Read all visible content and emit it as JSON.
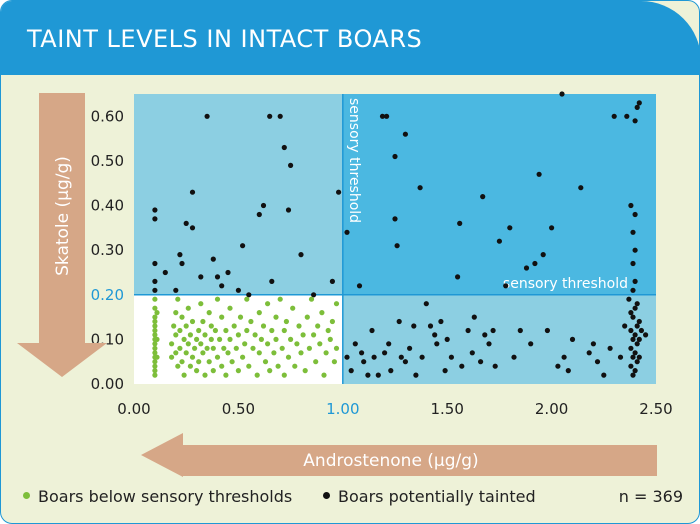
{
  "header": {
    "title": "TAINT LEVELS IN INTACT BOARS"
  },
  "colors": {
    "header_bg": "#1f98d5",
    "panel_bg": "#eef2d8",
    "region_high_both": "#4bb8e1",
    "region_single": "#8ccfe2",
    "region_below": "#ffffff",
    "point_green": "#7dbe3a",
    "point_black": "#111111",
    "arrow_tan": "#d6a787",
    "threshold_line": "#1f98d5"
  },
  "legend": {
    "below_label": "Boars below sensory thresholds",
    "tainted_label": "Boars potentially tainted",
    "n_label": "n = 369"
  },
  "chart_data": {
    "type": "scatter",
    "title": "TAINT LEVELS IN INTACT BOARS",
    "xlabel": "Androstenone (µg/g)",
    "ylabel": "Skatole (µg/g)",
    "xlim": [
      0,
      2.5
    ],
    "ylim": [
      0,
      0.65
    ],
    "xticks": [
      "0.00",
      "0.50",
      "1.00",
      "1.50",
      "2.00",
      "2.50"
    ],
    "yticks": [
      "0.00",
      "0.10",
      "0.20",
      "0.30",
      "0.40",
      "0.50",
      "0.60"
    ],
    "x_threshold": 1.0,
    "y_threshold": 0.2,
    "x_threshold_label": "sensory threshold",
    "y_threshold_label": "sensory threshold",
    "n": 369,
    "series": [
      {
        "name": "Boars potentially tainted",
        "points": [
          [
            0.1,
            0.39
          ],
          [
            0.1,
            0.37
          ],
          [
            0.1,
            0.27
          ],
          [
            0.1,
            0.23
          ],
          [
            0.1,
            0.21
          ],
          [
            0.15,
            0.25
          ],
          [
            0.2,
            0.21
          ],
          [
            0.22,
            0.29
          ],
          [
            0.23,
            0.27
          ],
          [
            0.25,
            0.36
          ],
          [
            0.28,
            0.35
          ],
          [
            0.28,
            0.43
          ],
          [
            0.32,
            0.24
          ],
          [
            0.35,
            0.6
          ],
          [
            0.38,
            0.28
          ],
          [
            0.4,
            0.24
          ],
          [
            0.42,
            0.22
          ],
          [
            0.45,
            0.25
          ],
          [
            0.5,
            0.21
          ],
          [
            0.52,
            0.31
          ],
          [
            0.55,
            0.2
          ],
          [
            0.6,
            0.38
          ],
          [
            0.62,
            0.4
          ],
          [
            0.65,
            0.6
          ],
          [
            0.66,
            0.23
          ],
          [
            0.7,
            0.6
          ],
          [
            0.72,
            0.53
          ],
          [
            0.75,
            0.49
          ],
          [
            0.74,
            0.39
          ],
          [
            0.8,
            0.29
          ],
          [
            0.86,
            0.2
          ],
          [
            0.95,
            0.23
          ],
          [
            0.98,
            0.43
          ],
          [
            1.02,
            0.34
          ],
          [
            1.02,
            0.06
          ],
          [
            1.04,
            0.03
          ],
          [
            1.06,
            0.09
          ],
          [
            1.08,
            0.22
          ],
          [
            1.09,
            0.07
          ],
          [
            1.1,
            0.05
          ],
          [
            1.12,
            0.02
          ],
          [
            1.14,
            0.12
          ],
          [
            1.15,
            0.06
          ],
          [
            1.17,
            0.02
          ],
          [
            1.19,
            0.6
          ],
          [
            1.2,
            0.07
          ],
          [
            1.21,
            0.6
          ],
          [
            1.22,
            0.09
          ],
          [
            1.23,
            0.03
          ],
          [
            1.25,
            0.51
          ],
          [
            1.25,
            0.37
          ],
          [
            1.26,
            0.31
          ],
          [
            1.27,
            0.14
          ],
          [
            1.28,
            0.06
          ],
          [
            1.3,
            0.56
          ],
          [
            1.3,
            0.05
          ],
          [
            1.32,
            0.08
          ],
          [
            1.34,
            0.13
          ],
          [
            1.35,
            0.02
          ],
          [
            1.37,
            0.44
          ],
          [
            1.38,
            0.06
          ],
          [
            1.4,
            0.18
          ],
          [
            1.42,
            0.13
          ],
          [
            1.44,
            0.11
          ],
          [
            1.45,
            0.09
          ],
          [
            1.47,
            0.14
          ],
          [
            1.49,
            0.03
          ],
          [
            1.5,
            0.1
          ],
          [
            1.52,
            0.06
          ],
          [
            1.55,
            0.24
          ],
          [
            1.56,
            0.36
          ],
          [
            1.57,
            0.04
          ],
          [
            1.6,
            0.12
          ],
          [
            1.62,
            0.07
          ],
          [
            1.63,
            0.15
          ],
          [
            1.66,
            0.05
          ],
          [
            1.67,
            0.42
          ],
          [
            1.68,
            0.11
          ],
          [
            1.7,
            0.09
          ],
          [
            1.72,
            0.12
          ],
          [
            1.73,
            0.04
          ],
          [
            1.75,
            0.32
          ],
          [
            1.78,
            0.22
          ],
          [
            1.8,
            0.35
          ],
          [
            1.82,
            0.06
          ],
          [
            1.85,
            0.12
          ],
          [
            1.88,
            0.26
          ],
          [
            1.9,
            0.09
          ],
          [
            1.92,
            0.27
          ],
          [
            1.94,
            0.47
          ],
          [
            1.96,
            0.29
          ],
          [
            1.98,
            0.12
          ],
          [
            2.0,
            0.35
          ],
          [
            2.03,
            0.04
          ],
          [
            2.05,
            0.65
          ],
          [
            2.06,
            0.06
          ],
          [
            2.08,
            0.03
          ],
          [
            2.1,
            0.1
          ],
          [
            2.14,
            0.44
          ],
          [
            2.18,
            0.07
          ],
          [
            2.2,
            0.09
          ],
          [
            2.22,
            0.05
          ],
          [
            2.25,
            0.02
          ],
          [
            2.28,
            0.08
          ],
          [
            2.3,
            0.6
          ],
          [
            2.33,
            0.06
          ],
          [
            2.35,
            0.13
          ],
          [
            2.36,
            0.6
          ],
          [
            2.37,
            0.19
          ],
          [
            2.38,
            0.4
          ],
          [
            2.38,
            0.16
          ],
          [
            2.38,
            0.12
          ],
          [
            2.38,
            0.08
          ],
          [
            2.38,
            0.04
          ],
          [
            2.39,
            0.34
          ],
          [
            2.39,
            0.27
          ],
          [
            2.39,
            0.21
          ],
          [
            2.39,
            0.15
          ],
          [
            2.39,
            0.1
          ],
          [
            2.39,
            0.06
          ],
          [
            2.39,
            0.02
          ],
          [
            2.4,
            0.38
          ],
          [
            2.4,
            0.3
          ],
          [
            2.4,
            0.23
          ],
          [
            2.4,
            0.17
          ],
          [
            2.4,
            0.11
          ],
          [
            2.4,
            0.07
          ],
          [
            2.4,
            0.03
          ],
          [
            2.4,
            0.59
          ],
          [
            2.41,
            0.62
          ],
          [
            2.41,
            0.18
          ],
          [
            2.41,
            0.13
          ],
          [
            2.41,
            0.09
          ],
          [
            2.41,
            0.05
          ],
          [
            2.42,
            0.63
          ],
          [
            2.42,
            0.14
          ],
          [
            2.42,
            0.1
          ],
          [
            2.42,
            0.06
          ],
          [
            2.43,
            0.12
          ],
          [
            2.45,
            0.11
          ]
        ]
      },
      {
        "name": "Boars below sensory thresholds",
        "points": [
          [
            0.1,
            0.19
          ],
          [
            0.1,
            0.17
          ],
          [
            0.1,
            0.15
          ],
          [
            0.1,
            0.14
          ],
          [
            0.1,
            0.13
          ],
          [
            0.1,
            0.12
          ],
          [
            0.1,
            0.11
          ],
          [
            0.1,
            0.1
          ],
          [
            0.1,
            0.09
          ],
          [
            0.1,
            0.08
          ],
          [
            0.1,
            0.07
          ],
          [
            0.1,
            0.06
          ],
          [
            0.1,
            0.05
          ],
          [
            0.1,
            0.04
          ],
          [
            0.1,
            0.03
          ],
          [
            0.1,
            0.02
          ],
          [
            0.11,
            0.16
          ],
          [
            0.11,
            0.1
          ],
          [
            0.11,
            0.06
          ],
          [
            0.18,
            0.09
          ],
          [
            0.18,
            0.06
          ],
          [
            0.19,
            0.13
          ],
          [
            0.2,
            0.16
          ],
          [
            0.2,
            0.11
          ],
          [
            0.2,
            0.07
          ],
          [
            0.21,
            0.04
          ],
          [
            0.21,
            0.19
          ],
          [
            0.22,
            0.12
          ],
          [
            0.22,
            0.08
          ],
          [
            0.23,
            0.05
          ],
          [
            0.23,
            0.15
          ],
          [
            0.24,
            0.1
          ],
          [
            0.24,
            0.02
          ],
          [
            0.25,
            0.13
          ],
          [
            0.25,
            0.07
          ],
          [
            0.26,
            0.17
          ],
          [
            0.26,
            0.09
          ],
          [
            0.27,
            0.11
          ],
          [
            0.27,
            0.04
          ],
          [
            0.28,
            0.06
          ],
          [
            0.28,
            0.14
          ],
          [
            0.29,
            0.08
          ],
          [
            0.3,
            0.1
          ],
          [
            0.3,
            0.03
          ],
          [
            0.31,
            0.12
          ],
          [
            0.31,
            0.05
          ],
          [
            0.32,
            0.18
          ],
          [
            0.32,
            0.09
          ],
          [
            0.33,
            0.07
          ],
          [
            0.33,
            0.14
          ],
          [
            0.34,
            0.02
          ],
          [
            0.34,
            0.11
          ],
          [
            0.35,
            0.08
          ],
          [
            0.36,
            0.16
          ],
          [
            0.36,
            0.05
          ],
          [
            0.37,
            0.1
          ],
          [
            0.37,
            0.13
          ],
          [
            0.38,
            0.03
          ],
          [
            0.38,
            0.08
          ],
          [
            0.39,
            0.12
          ],
          [
            0.4,
            0.06
          ],
          [
            0.4,
            0.19
          ],
          [
            0.41,
            0.1
          ],
          [
            0.42,
            0.04
          ],
          [
            0.42,
            0.15
          ],
          [
            0.43,
            0.08
          ],
          [
            0.44,
            0.12
          ],
          [
            0.44,
            0.02
          ],
          [
            0.45,
            0.07
          ],
          [
            0.46,
            0.17
          ],
          [
            0.46,
            0.1
          ],
          [
            0.47,
            0.05
          ],
          [
            0.48,
            0.13
          ],
          [
            0.49,
            0.08
          ],
          [
            0.5,
            0.11
          ],
          [
            0.5,
            0.03
          ],
          [
            0.51,
            0.15
          ],
          [
            0.52,
            0.06
          ],
          [
            0.53,
            0.09
          ],
          [
            0.54,
            0.19
          ],
          [
            0.54,
            0.12
          ],
          [
            0.55,
            0.04
          ],
          [
            0.56,
            0.14
          ],
          [
            0.57,
            0.08
          ],
          [
            0.58,
            0.11
          ],
          [
            0.59,
            0.02
          ],
          [
            0.6,
            0.16
          ],
          [
            0.6,
            0.07
          ],
          [
            0.61,
            0.1
          ],
          [
            0.62,
            0.13
          ],
          [
            0.63,
            0.05
          ],
          [
            0.64,
            0.18
          ],
          [
            0.64,
            0.09
          ],
          [
            0.65,
            0.03
          ],
          [
            0.66,
            0.12
          ],
          [
            0.67,
            0.07
          ],
          [
            0.68,
            0.15
          ],
          [
            0.68,
            0.1
          ],
          [
            0.69,
            0.04
          ],
          [
            0.7,
            0.19
          ],
          [
            0.71,
            0.08
          ],
          [
            0.72,
            0.12
          ],
          [
            0.72,
            0.02
          ],
          [
            0.73,
            0.14
          ],
          [
            0.74,
            0.06
          ],
          [
            0.75,
            0.1
          ],
          [
            0.76,
            0.17
          ],
          [
            0.77,
            0.04
          ],
          [
            0.78,
            0.09
          ],
          [
            0.79,
            0.13
          ],
          [
            0.8,
            0.07
          ],
          [
            0.81,
            0.11
          ],
          [
            0.82,
            0.03
          ],
          [
            0.83,
            0.15
          ],
          [
            0.84,
            0.08
          ],
          [
            0.85,
            0.19
          ],
          [
            0.86,
            0.11
          ],
          [
            0.87,
            0.05
          ],
          [
            0.88,
            0.13
          ],
          [
            0.89,
            0.09
          ],
          [
            0.9,
            0.16
          ],
          [
            0.91,
            0.02
          ],
          [
            0.92,
            0.07
          ],
          [
            0.93,
            0.12
          ],
          [
            0.94,
            0.1
          ],
          [
            0.95,
            0.14
          ],
          [
            0.96,
            0.05
          ],
          [
            0.97,
            0.08
          ],
          [
            0.97,
            0.18
          ]
        ]
      }
    ]
  }
}
